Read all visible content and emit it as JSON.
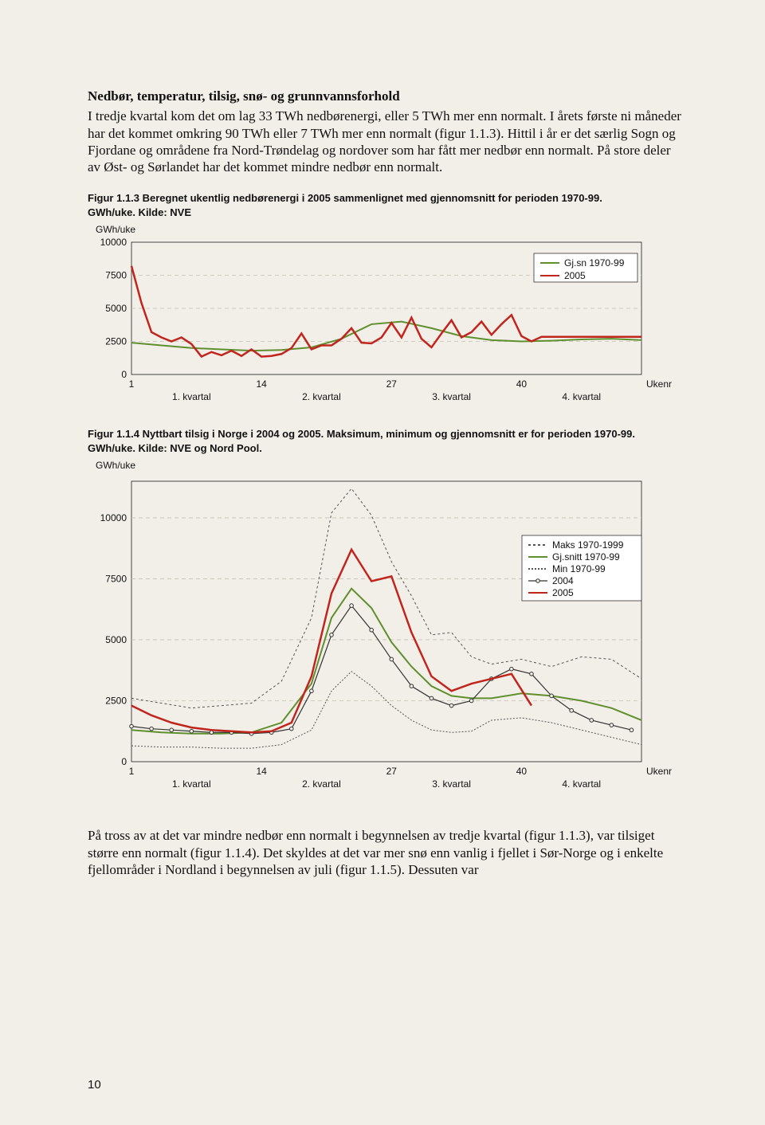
{
  "section_heading": "Nedbør, temperatur, tilsig, snø- og grunnvannsforhold",
  "para1": "I tredje kvartal kom det om lag 33 TWh nedbørenergi, eller 5 TWh mer enn normalt. I årets første ni måneder har det kommet omkring 90 TWh eller 7 TWh mer enn normalt (figur 1.1.3). Hittil i år er det særlig Sogn og Fjordane og områdene fra Nord-Trøndelag og nordover som har fått mer nedbør enn normalt. På store deler av Øst- og Sørlandet har det kommet mindre nedbør enn normalt.",
  "caption1_a": "Figur 1.1.3 Beregnet ukentlig nedbørenergi i 2005 sammenlignet med gjennomsnitt for perioden 1970-99.",
  "caption1_b": "GWh/uke. Kilde: NVE",
  "caption2_a": "Figur 1.1.4 Nyttbart tilsig i Norge i 2004 og 2005. Maksimum, minimum og gjennomsnitt er for perioden 1970-99.",
  "caption2_b": "GWh/uke. Kilde: NVE og Nord Pool.",
  "para2": "På tross av at det var mindre nedbør enn normalt i begynnelsen av tredje kvartal (figur 1.1.3), var tilsiget større enn normalt (figur 1.1.4). Det skyldes at det var mer snø enn vanlig i fjellet i Sør-Norge og i enkelte fjellområder i Nordland i begynnelsen av juli (figur 1.1.5). Dessuten var",
  "pagenum": "10",
  "chart1": {
    "type": "line",
    "y_title": "GWh/uke",
    "ylim": [
      0,
      10000
    ],
    "yticks": [
      0,
      2500,
      5000,
      7500,
      10000
    ],
    "xticks": [
      1,
      14,
      27,
      40
    ],
    "x_right_label": "Ukenr",
    "quarters": [
      "1. kvartal",
      "2. kvartal",
      "3. kvartal",
      "4. kvartal"
    ],
    "grid_color": "#c7c0b3",
    "frame_color": "#333333",
    "background_color": "#f2efe8",
    "legend": [
      {
        "label": "Gj.sn 1970-99",
        "color": "#5f8f2e",
        "dash": ""
      },
      {
        "label": "2005",
        "color": "#c0261e",
        "dash": ""
      }
    ],
    "series": {
      "gjsn": {
        "color": "#5f8f2e",
        "width": 2,
        "dash": "",
        "x": [
          1,
          4,
          7,
          10,
          13,
          16,
          19,
          22,
          25,
          28,
          31,
          34,
          37,
          40,
          43,
          46,
          49,
          52
        ],
        "y": [
          2400,
          2200,
          2000,
          1900,
          1800,
          1850,
          2050,
          2700,
          3800,
          4000,
          3500,
          2900,
          2600,
          2500,
          2550,
          2650,
          2700,
          2600
        ]
      },
      "y2005": {
        "color": "#c0261e",
        "width": 2.5,
        "dash": "",
        "x": [
          1,
          2,
          3,
          4,
          5,
          6,
          7,
          8,
          9,
          10,
          11,
          12,
          13,
          14,
          15,
          16,
          17,
          18,
          19,
          20,
          21,
          22,
          23,
          24,
          25,
          26,
          27,
          28,
          29,
          30,
          31,
          32,
          33,
          34,
          35,
          36,
          37,
          38,
          39,
          40,
          41,
          42,
          43,
          44,
          45,
          46,
          47,
          48,
          49,
          50,
          51,
          52
        ],
        "y": [
          8200,
          5400,
          3200,
          2800,
          2500,
          2800,
          2300,
          1350,
          1700,
          1450,
          1800,
          1400,
          1900,
          1350,
          1400,
          1550,
          2000,
          3100,
          1900,
          2200,
          2200,
          2700,
          3500,
          2400,
          2350,
          2800,
          3900,
          2800,
          4300,
          2700,
          2050,
          3100,
          4100,
          2800,
          3200,
          4000,
          3000,
          3800,
          4500,
          2900,
          2500,
          2850,
          2850,
          2850,
          2850,
          2850,
          2850,
          2850,
          2850,
          2850,
          2850,
          2850
        ]
      }
    }
  },
  "chart2": {
    "type": "line",
    "y_title": "GWh/uke",
    "ylim": [
      0,
      11500
    ],
    "yticks": [
      0,
      2500,
      5000,
      7500,
      10000
    ],
    "xticks": [
      1,
      14,
      27,
      40
    ],
    "x_right_label": "Ukenr",
    "quarters": [
      "1. kvartal",
      "2. kvartal",
      "3. kvartal",
      "4. kvartal"
    ],
    "grid_color": "#c7c0b3",
    "frame_color": "#333333",
    "background_color": "#f2efe8",
    "legend": [
      {
        "label": "Maks 1970-1999",
        "color": "#555555",
        "dash": "3,3"
      },
      {
        "label": "Gj.snitt 1970-99",
        "color": "#5f8f2e",
        "dash": ""
      },
      {
        "label": "Min 1970-99",
        "color": "#555555",
        "dash": "2,2"
      },
      {
        "label": "2004",
        "color": "#333333",
        "dash": "",
        "marker": true
      },
      {
        "label": "2005",
        "color": "#c0261e",
        "dash": ""
      }
    ],
    "series": {
      "maks": {
        "color": "#555555",
        "width": 1,
        "dash": "3,3",
        "x": [
          1,
          4,
          7,
          10,
          13,
          16,
          19,
          21,
          23,
          25,
          27,
          29,
          31,
          33,
          35,
          37,
          40,
          43,
          46,
          49,
          52
        ],
        "y": [
          2600,
          2400,
          2200,
          2300,
          2400,
          3300,
          5900,
          10200,
          11200,
          10100,
          8200,
          6800,
          5200,
          5300,
          4300,
          4000,
          4200,
          3900,
          4300,
          4200,
          3400
        ]
      },
      "gjsn": {
        "color": "#5f8f2e",
        "width": 2,
        "dash": "",
        "x": [
          1,
          4,
          7,
          10,
          13,
          16,
          19,
          21,
          23,
          25,
          27,
          29,
          31,
          33,
          35,
          37,
          40,
          43,
          46,
          49,
          52
        ],
        "y": [
          1300,
          1200,
          1150,
          1150,
          1200,
          1600,
          3200,
          5900,
          7100,
          6300,
          4900,
          3900,
          3100,
          2700,
          2600,
          2600,
          2800,
          2700,
          2500,
          2200,
          1700
        ]
      },
      "min": {
        "color": "#555555",
        "width": 1,
        "dash": "2,2",
        "x": [
          1,
          4,
          7,
          10,
          13,
          16,
          19,
          21,
          23,
          25,
          27,
          29,
          31,
          33,
          35,
          37,
          40,
          43,
          46,
          49,
          52
        ],
        "y": [
          650,
          600,
          600,
          550,
          550,
          700,
          1300,
          2900,
          3700,
          3100,
          2300,
          1700,
          1300,
          1200,
          1250,
          1700,
          1800,
          1600,
          1300,
          1000,
          700
        ]
      },
      "y2004": {
        "color": "#333333",
        "width": 1.2,
        "dash": "",
        "marker": true,
        "x": [
          1,
          3,
          5,
          7,
          9,
          11,
          13,
          15,
          17,
          19,
          21,
          23,
          25,
          27,
          29,
          31,
          33,
          35,
          37,
          39,
          41,
          43,
          45,
          47,
          49,
          51
        ],
        "y": [
          1450,
          1350,
          1300,
          1250,
          1200,
          1200,
          1150,
          1200,
          1350,
          2900,
          5200,
          6400,
          5400,
          4200,
          3100,
          2600,
          2300,
          2500,
          3400,
          3800,
          3600,
          2700,
          2100,
          1700,
          1500,
          1300
        ]
      },
      "y2005": {
        "color": "#c0261e",
        "width": 2.5,
        "dash": "",
        "x": [
          1,
          3,
          5,
          7,
          9,
          11,
          13,
          15,
          17,
          19,
          21,
          23,
          25,
          27,
          29,
          31,
          33,
          35,
          37,
          39,
          41
        ],
        "y": [
          2300,
          1900,
          1600,
          1400,
          1300,
          1250,
          1200,
          1250,
          1600,
          3500,
          6900,
          8700,
          7400,
          7600,
          5300,
          3500,
          2900,
          3200,
          3400,
          3600,
          2300
        ]
      }
    }
  }
}
